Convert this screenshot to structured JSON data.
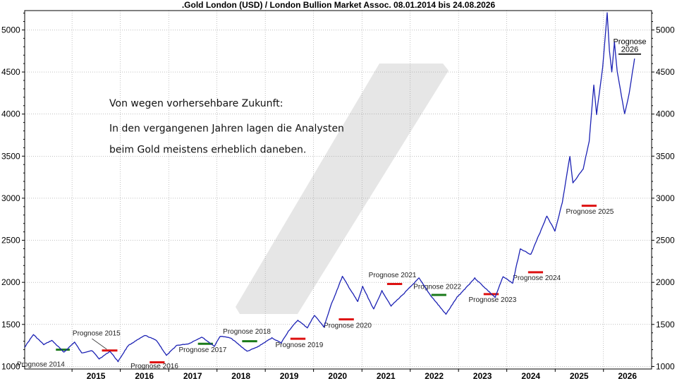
{
  "chart_data": {
    "type": "line",
    "title": ".Gold London (USD) / London Bullion Market Assoc. 08.01.2014 bis 24.08.2026",
    "xlabel": "",
    "ylabel": "",
    "ylim": [
      970,
      5230
    ],
    "xlim": [
      "2014-01-08",
      "2026-12-31"
    ],
    "grid": true,
    "x_ticks": [
      "2015",
      "2016",
      "2017",
      "2018",
      "2019",
      "2020",
      "2021",
      "2022",
      "2023",
      "2024",
      "2025",
      "2026"
    ],
    "y_ticks": [
      1000,
      1500,
      2000,
      2500,
      3000,
      3500,
      4000,
      4500,
      5000
    ],
    "series": [
      {
        "color": "#1c22b4",
        "points": [
          [
            "2014-01-08",
            1230
          ],
          [
            "2014-03-15",
            1380
          ],
          [
            "2014-06-01",
            1260
          ],
          [
            "2014-08-01",
            1310
          ],
          [
            "2014-11-01",
            1170
          ],
          [
            "2015-01-20",
            1290
          ],
          [
            "2015-03-15",
            1160
          ],
          [
            "2015-06-01",
            1190
          ],
          [
            "2015-07-25",
            1090
          ],
          [
            "2015-10-15",
            1180
          ],
          [
            "2015-12-15",
            1060
          ],
          [
            "2016-03-01",
            1250
          ],
          [
            "2016-07-06",
            1370
          ],
          [
            "2016-10-01",
            1310
          ],
          [
            "2016-12-15",
            1130
          ],
          [
            "2017-03-01",
            1250
          ],
          [
            "2017-06-01",
            1270
          ],
          [
            "2017-09-08",
            1350
          ],
          [
            "2017-12-12",
            1240
          ],
          [
            "2018-01-25",
            1360
          ],
          [
            "2018-04-15",
            1340
          ],
          [
            "2018-08-16",
            1180
          ],
          [
            "2018-11-01",
            1230
          ],
          [
            "2019-02-20",
            1340
          ],
          [
            "2019-05-01",
            1280
          ],
          [
            "2019-06-25",
            1420
          ],
          [
            "2019-09-04",
            1550
          ],
          [
            "2019-11-15",
            1460
          ],
          [
            "2020-01-08",
            1610
          ],
          [
            "2020-03-19",
            1470
          ],
          [
            "2020-05-15",
            1740
          ],
          [
            "2020-08-06",
            2070
          ],
          [
            "2020-11-30",
            1770
          ],
          [
            "2021-01-06",
            1950
          ],
          [
            "2021-03-31",
            1680
          ],
          [
            "2021-06-01",
            1900
          ],
          [
            "2021-08-09",
            1720
          ],
          [
            "2021-11-16",
            1870
          ],
          [
            "2022-03-08",
            2050
          ],
          [
            "2022-06-01",
            1850
          ],
          [
            "2022-09-28",
            1620
          ],
          [
            "2022-12-20",
            1820
          ],
          [
            "2023-05-04",
            2050
          ],
          [
            "2023-10-05",
            1820
          ],
          [
            "2023-12-04",
            2070
          ],
          [
            "2024-02-14",
            1990
          ],
          [
            "2024-04-12",
            2400
          ],
          [
            "2024-07-01",
            2330
          ],
          [
            "2024-10-30",
            2790
          ],
          [
            "2024-12-30",
            2610
          ],
          [
            "2025-02-24",
            2950
          ],
          [
            "2025-04-22",
            3500
          ],
          [
            "2025-05-15",
            3180
          ],
          [
            "2025-08-01",
            3350
          ],
          [
            "2025-09-15",
            3680
          ],
          [
            "2025-10-20",
            4350
          ],
          [
            "2025-11-10",
            4000
          ],
          [
            "2025-12-26",
            4550
          ],
          [
            "2026-01-29",
            5200
          ],
          [
            "2026-02-15",
            4750
          ],
          [
            "2026-03-05",
            4500
          ],
          [
            "2026-03-25",
            4850
          ],
          [
            "2026-04-15",
            4500
          ],
          [
            "2026-06-10",
            4000
          ],
          [
            "2026-07-15",
            4250
          ],
          [
            "2026-08-24",
            4660
          ]
        ]
      }
    ],
    "forecasts": [
      {
        "label": "Prognose 2014",
        "color": "#1a7a1a",
        "x": [
          "2014-09-01",
          "2014-12-15"
        ],
        "value": 1200,
        "label_x": "2014-05-10",
        "label_y": 1000
      },
      {
        "label": "Prognose 2015",
        "color": "#dd1111",
        "x": [
          "2015-08-15",
          "2015-12-10"
        ],
        "value": 1190,
        "label_x": "2015-07-05",
        "label_y": 1370
      },
      {
        "label": "Prognose 2016",
        "color": "#dd1111",
        "x": [
          "2016-08-10",
          "2016-12-01"
        ],
        "value": 1050,
        "label_x": "2016-09-15",
        "label_y": 980
      },
      {
        "label": "Prognose 2017",
        "color": "#1a7a1a",
        "x": [
          "2017-08-10",
          "2017-12-01"
        ],
        "value": 1270,
        "label_x": "2017-09-15",
        "label_y": 1170
      },
      {
        "label": "Prognose 2018",
        "color": "#1a7a1a",
        "x": [
          "2018-07-10",
          "2018-11-01"
        ],
        "value": 1300,
        "label_x": "2018-08-15",
        "label_y": 1390
      },
      {
        "label": "Prognose 2019",
        "color": "#dd1111",
        "x": [
          "2019-07-10",
          "2019-11-01"
        ],
        "value": 1330,
        "label_x": "2019-09-15",
        "label_y": 1230
      },
      {
        "label": "Prognose 2020",
        "color": "#dd1111",
        "x": [
          "2020-07-10",
          "2020-11-01"
        ],
        "value": 1560,
        "label_x": "2020-09-15",
        "label_y": 1460
      },
      {
        "label": "Prognose 2021",
        "color": "#dd1111",
        "x": [
          "2021-07-10",
          "2021-11-01"
        ],
        "value": 1980,
        "label_x": "2021-08-20",
        "label_y": 2060
      },
      {
        "label": "Prognose 2022",
        "color": "#1a7a1a",
        "x": [
          "2022-06-10",
          "2022-10-01"
        ],
        "value": 1850,
        "label_x": "2022-07-25",
        "label_y": 1920
      },
      {
        "label": "Prognose 2023",
        "color": "#dd1111",
        "x": [
          "2023-07-10",
          "2023-11-01"
        ],
        "value": 1860,
        "label_x": "2023-09-15",
        "label_y": 1765
      },
      {
        "label": "Prognose 2024",
        "color": "#dd1111",
        "x": [
          "2024-06-10",
          "2024-10-01"
        ],
        "value": 2120,
        "label_x": "2024-08-15",
        "label_y": 2025
      },
      {
        "label": "Prognose 2025",
        "color": "#dd1111",
        "x": [
          "2025-07-20",
          "2025-11-10"
        ],
        "value": 2910,
        "label_x": "2025-09-20",
        "label_y": 2815
      }
    ],
    "forecast_2026": {
      "label_line1": "Prognose",
      "label_line2": "2026",
      "label_x": "2027-02-20",
      "label_y": 4830
    },
    "annotations": [
      {
        "text": "Von wegen vorhersehbare Zukunft:",
        "x": "2015-10-10",
        "y": 4090
      },
      {
        "text": "In den vergangenen Jahren lagen die Analysten",
        "x": "2015-10-10",
        "y": 3790
      },
      {
        "text": "beim Gold meistens erheblich daneben.",
        "x": "2015-10-10",
        "y": 3540
      }
    ]
  }
}
